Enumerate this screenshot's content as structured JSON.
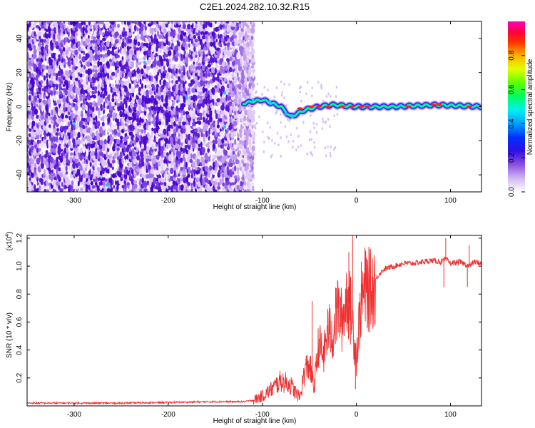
{
  "title": "C2E1.2024.282.10.32.R15",
  "chart_data": [
    {
      "type": "heatmap",
      "panel": "top",
      "xlabel": "Height of straight line (km)",
      "ylabel": "Frequency (Hz)",
      "xlim": [
        -350,
        133
      ],
      "ylim": [
        -50,
        50
      ],
      "xticks": [
        -300,
        -200,
        -100,
        0,
        100
      ],
      "xtick_labels": [
        "-300",
        "-200",
        "-100",
        "0",
        "100"
      ],
      "yticks": [
        -40,
        -20,
        0,
        20,
        40
      ],
      "ytick_labels": [
        "-40",
        "-20",
        "0",
        "20",
        "40"
      ],
      "colorbar": {
        "label": "Normalized spectral amplitude",
        "range": [
          0,
          1
        ],
        "ticks": [
          0.0,
          0.2,
          0.4,
          0.6,
          0.8
        ],
        "tick_labels": [
          "0.0",
          "0.2",
          "0.4",
          "0.6",
          "0.8"
        ],
        "colormap": [
          "#ffffff",
          "#dcc8f4",
          "#a070e8",
          "#5a10d8",
          "#0000ff",
          "#00b4ff",
          "#00ffff",
          "#00ff40",
          "#c8ff00",
          "#ffd000",
          "#ff4000",
          "#ff0000",
          "#ff00a0"
        ]
      },
      "description_points": {
        "noise_region_x": [
          -350,
          -110
        ],
        "main_trace": [
          {
            "x": -120,
            "freq": 2,
            "amp": 0.35
          },
          {
            "x": -100,
            "freq": 4,
            "amp": 0.45
          },
          {
            "x": -80,
            "freq": 0,
            "amp": 0.55
          },
          {
            "x": -70,
            "freq": -6,
            "amp": 0.6
          },
          {
            "x": -55,
            "freq": -2,
            "amp": 0.75
          },
          {
            "x": -40,
            "freq": 0,
            "amp": 0.95
          },
          {
            "x": -25,
            "freq": 1,
            "amp": 0.9
          },
          {
            "x": 0,
            "freq": 0,
            "amp": 1.0
          },
          {
            "x": 40,
            "freq": 0,
            "amp": 0.75
          },
          {
            "x": 85,
            "freq": 1,
            "amp": 0.95
          },
          {
            "x": 133,
            "freq": 0,
            "amp": 0.8
          }
        ]
      }
    },
    {
      "type": "line",
      "panel": "bottom",
      "xlabel": "Height of straight line (km)",
      "ylabel": "SNR (10 * v/v)",
      "yscale_label": "(x10",
      "yscale_exp": "4",
      "yscale_close": ")",
      "xlim": [
        -350,
        133
      ],
      "ylim": [
        0,
        1.22
      ],
      "xticks": [
        -300,
        -200,
        -100,
        0,
        100
      ],
      "xtick_labels": [
        "-300",
        "-200",
        "-100",
        "0",
        "100"
      ],
      "yticks": [
        0.2,
        0.4,
        0.6,
        0.8,
        1.0,
        1.2
      ],
      "ytick_labels": [
        "0.2",
        "0.4",
        "0.6",
        "0.8",
        "1.0",
        "1.2"
      ],
      "color": "#ee3030",
      "series": [
        {
          "name": "SNR",
          "x": [
            -350,
            -300,
            -250,
            -200,
            -150,
            -120,
            -110,
            -100,
            -90,
            -80,
            -70,
            -65,
            -60,
            -55,
            -50,
            -45,
            -40,
            -35,
            -30,
            -25,
            -20,
            -15,
            -10,
            -5,
            0,
            5,
            10,
            15,
            20,
            25,
            30,
            40,
            50,
            60,
            70,
            80,
            90,
            95,
            100,
            110,
            120,
            125,
            133
          ],
          "y": [
            0.02,
            0.02,
            0.02,
            0.025,
            0.03,
            0.03,
            0.04,
            0.07,
            0.12,
            0.18,
            0.15,
            0.1,
            0.06,
            0.25,
            0.3,
            0.12,
            0.45,
            0.35,
            0.55,
            0.5,
            0.7,
            0.6,
            0.8,
            0.65,
            0.35,
            0.75,
            0.85,
            0.82,
            0.9,
            0.95,
            0.98,
            1.0,
            1.02,
            1.02,
            1.03,
            1.04,
            1.03,
            1.05,
            1.02,
            1.03,
            1.0,
            1.03,
            1.02
          ]
        }
      ],
      "spikes": [
        {
          "x": -47,
          "y": 0.75
        },
        {
          "x": -20,
          "y": 0.9
        },
        {
          "x": -8,
          "y": 1.1
        },
        {
          "x": -4,
          "y": 1.22
        },
        {
          "x": -1,
          "y": 0.12
        },
        {
          "x": 93,
          "y": 0.85
        },
        {
          "x": 95,
          "y": 1.2
        },
        {
          "x": 118,
          "y": 0.85
        },
        {
          "x": 120,
          "y": 1.15
        }
      ]
    }
  ]
}
